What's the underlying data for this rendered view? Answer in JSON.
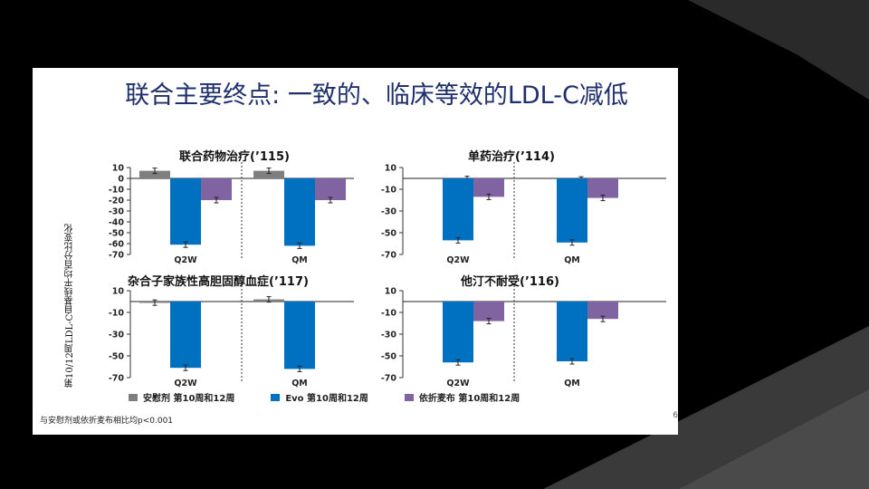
{
  "slide": {
    "title": "联合主要终点: 一致的、临床等效的LDL-C减低",
    "ylabel": "第10/12周LDL-C自基线平均百分比变化",
    "footnote": "与安慰剂或依折麦布相比均p<0.001",
    "page_number": "6"
  },
  "colors": {
    "placebo": "#7f7f7f",
    "evo": "#0070c0",
    "ezetimibe": "#8064a2",
    "background": "#000000",
    "title": "#1f2f6b"
  },
  "legend": [
    {
      "label": "安慰剂 第10周和12周",
      "color_key": "placebo"
    },
    {
      "label": "Evo 第10周和12周",
      "color_key": "evo"
    },
    {
      "label": "依折麦布 第10周和12周",
      "color_key": "ezetimibe"
    }
  ],
  "chart_data": [
    {
      "type": "bar",
      "title": "联合药物治疗(’115)",
      "categories": [
        "Q2W",
        "QM"
      ],
      "yticks": [
        10,
        0,
        -10,
        -20,
        -30,
        -40,
        -50,
        -60,
        -70
      ],
      "ylim": [
        -70,
        10
      ],
      "series": [
        {
          "name": "安慰剂 第10周和12周",
          "color_key": "placebo",
          "values": [
            7,
            7
          ]
        },
        {
          "name": "Evo 第10周和12周",
          "color_key": "evo",
          "values": [
            -61,
            -62
          ]
        },
        {
          "name": "依折麦布 第10周和12周",
          "color_key": "ezetimibe",
          "values": [
            -20,
            -20
          ]
        }
      ]
    },
    {
      "type": "bar",
      "title": "单药治疗(’114)",
      "categories": [
        "Q2W",
        "QM"
      ],
      "yticks": [
        10,
        -10,
        -30,
        -50,
        -70
      ],
      "ylim": [
        -70,
        10
      ],
      "series": [
        {
          "name": "安慰剂 第10周和12周",
          "color_key": "placebo",
          "values": [
            -0.5,
            -1
          ]
        },
        {
          "name": "Evo 第10周和12周",
          "color_key": "evo",
          "values": [
            -57,
            -59
          ]
        },
        {
          "name": "依折麦布 第10周和12周",
          "color_key": "ezetimibe",
          "values": [
            -17,
            -18
          ]
        }
      ]
    },
    {
      "type": "bar",
      "title": "杂合子家族性高胆固醇血症(’117)",
      "categories": [
        "Q2W",
        "QM"
      ],
      "yticks": [
        10,
        -10,
        -30,
        -50,
        -70
      ],
      "ylim": [
        -70,
        10
      ],
      "series": [
        {
          "name": "安慰剂 第10周和12周",
          "color_key": "placebo",
          "values": [
            -1,
            2
          ]
        },
        {
          "name": "Evo 第10周和12周",
          "color_key": "evo",
          "values": [
            -61,
            -62
          ]
        }
      ]
    },
    {
      "type": "bar",
      "title": "他汀不耐受(’116)",
      "categories": [
        "Q2W",
        "QM"
      ],
      "yticks": [
        10,
        -10,
        -30,
        -50,
        -70
      ],
      "ylim": [
        -70,
        10
      ],
      "series": [
        {
          "name": "Evo 第10周和12周",
          "color_key": "evo",
          "values": [
            -56,
            -55
          ]
        },
        {
          "name": "依折麦布 第10周和12周",
          "color_key": "ezetimibe",
          "values": [
            -18,
            -16
          ]
        }
      ]
    }
  ]
}
